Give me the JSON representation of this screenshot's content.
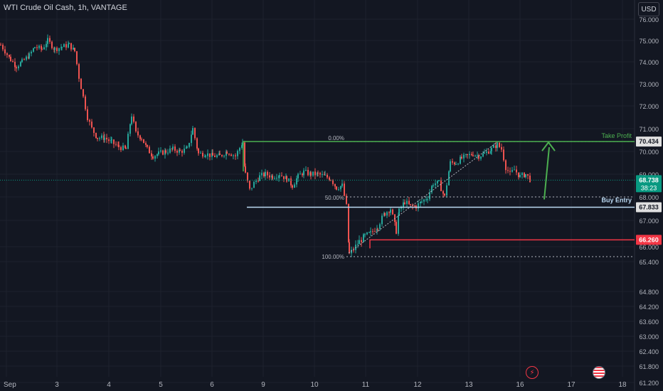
{
  "header": {
    "symbol_title": "WTI Crude Oil Cash, 1h, VANTAGE",
    "currency": "USD"
  },
  "chart_data": {
    "type": "candlestick",
    "y_ticks": [
      "76.000",
      "75.000",
      "74.000",
      "73.000",
      "72.000",
      "71.000",
      "70.000",
      "69.000",
      "68.000",
      "67.000",
      "66.000",
      "65.400",
      "64.800",
      "64.200",
      "63.600",
      "63.000",
      "62.400",
      "61.800",
      "61.200"
    ],
    "x_ticks": [
      "Sep",
      "3",
      "4",
      "5",
      "6",
      "9",
      "10",
      "11",
      "12",
      "13",
      "16",
      "17",
      "18"
    ],
    "fib_levels": [
      {
        "label": "0.00%",
        "value": 70.434
      },
      {
        "label": "50.00%",
        "value": 67.833
      },
      {
        "label": "100.00%",
        "value": 65.5
      }
    ],
    "annotations": {
      "take_profit": {
        "label": "Take Profit",
        "value": 70.434
      },
      "buy_entry": {
        "label": "Buy Entry",
        "value": 67.833
      },
      "stop_loss": {
        "value": 66.26
      }
    },
    "price_labels": {
      "take_profit": "70.434",
      "current_price": "68.738",
      "countdown": "38:23",
      "buy_entry": "67.833",
      "stop_loss": "66.260"
    },
    "current_price": 68.738,
    "series_path": [
      [
        0,
        74.8
      ],
      [
        6,
        74.5
      ],
      [
        14,
        74.1
      ],
      [
        22,
        73.8
      ],
      [
        30,
        74.0
      ],
      [
        40,
        74.3
      ],
      [
        48,
        74.7
      ],
      [
        58,
        74.6
      ],
      [
        66,
        75.0
      ],
      [
        76,
        74.6
      ],
      [
        86,
        74.7
      ],
      [
        96,
        74.8
      ],
      [
        104,
        74.5
      ],
      [
        110,
        73.3
      ],
      [
        116,
        72.4
      ],
      [
        122,
        71.5
      ],
      [
        128,
        71.0
      ],
      [
        136,
        70.6
      ],
      [
        146,
        70.6
      ],
      [
        156,
        70.4
      ],
      [
        166,
        70.2
      ],
      [
        176,
        70.1
      ],
      [
        184,
        71.6
      ],
      [
        190,
        70.8
      ],
      [
        198,
        70.6
      ],
      [
        206,
        70.1
      ],
      [
        214,
        69.8
      ],
      [
        222,
        69.9
      ],
      [
        232,
        70.0
      ],
      [
        242,
        70.1
      ],
      [
        252,
        70.0
      ],
      [
        262,
        70.1
      ],
      [
        270,
        71.0
      ],
      [
        278,
        69.9
      ],
      [
        288,
        69.9
      ],
      [
        298,
        69.8
      ],
      [
        308,
        69.8
      ],
      [
        318,
        70.0
      ],
      [
        330,
        69.8
      ],
      [
        340,
        70.4
      ],
      [
        344,
        69.0
      ],
      [
        350,
        68.3
      ],
      [
        356,
        68.6
      ],
      [
        364,
        68.9
      ],
      [
        372,
        69.0
      ],
      [
        382,
        68.9
      ],
      [
        392,
        69.0
      ],
      [
        402,
        68.8
      ],
      [
        410,
        68.5
      ],
      [
        418,
        68.9
      ],
      [
        426,
        69.1
      ],
      [
        436,
        69.0
      ],
      [
        446,
        69.0
      ],
      [
        456,
        68.9
      ],
      [
        464,
        68.8
      ],
      [
        472,
        68.4
      ],
      [
        480,
        68.5
      ],
      [
        486,
        67.6
      ],
      [
        490,
        65.7
      ],
      [
        496,
        65.9
      ],
      [
        504,
        66.2
      ],
      [
        512,
        66.4
      ],
      [
        520,
        66.5
      ],
      [
        530,
        66.8
      ],
      [
        540,
        67.3
      ],
      [
        548,
        67.5
      ],
      [
        556,
        66.6
      ],
      [
        560,
        67.4
      ],
      [
        568,
        67.8
      ],
      [
        576,
        67.6
      ],
      [
        584,
        67.6
      ],
      [
        592,
        67.8
      ],
      [
        600,
        68.0
      ],
      [
        608,
        68.6
      ],
      [
        616,
        68.6
      ],
      [
        624,
        68.0
      ],
      [
        632,
        69.5
      ],
      [
        640,
        69.5
      ],
      [
        648,
        69.7
      ],
      [
        656,
        69.8
      ],
      [
        664,
        69.9
      ],
      [
        672,
        69.8
      ],
      [
        680,
        69.9
      ],
      [
        690,
        70.1
      ],
      [
        698,
        70.3
      ],
      [
        704,
        70.1
      ],
      [
        710,
        69.3
      ],
      [
        716,
        69.0
      ],
      [
        722,
        69.2
      ],
      [
        730,
        68.9
      ],
      [
        738,
        69.0
      ],
      [
        746,
        68.7
      ]
    ]
  }
}
